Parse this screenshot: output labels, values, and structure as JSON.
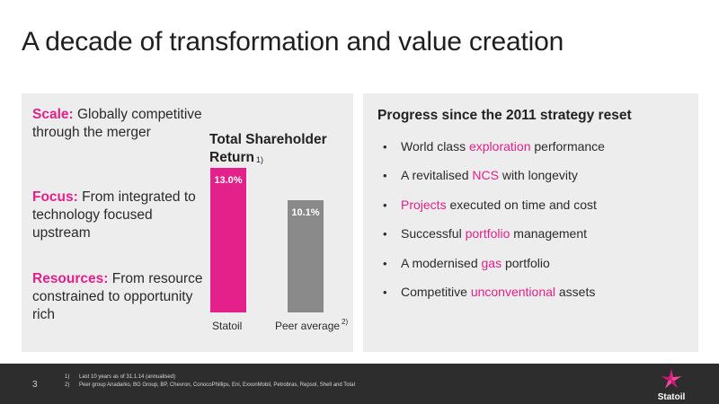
{
  "title": "A decade of transformation and value creation",
  "left_panel": {
    "pillars": [
      {
        "key": "Scale:",
        "text": " Globally competitive through the merger"
      },
      {
        "key": "Focus:",
        "text": " From integrated to technology focused upstream"
      },
      {
        "key": "Resources:",
        "text": " From resource constrained to opportunity rich"
      }
    ],
    "tsr_title": "Total Shareholder Return",
    "tsr_footnote": "1)"
  },
  "chart_data": {
    "type": "bar",
    "title": "Total Shareholder Return",
    "categories": [
      "Statoil",
      "Peer average"
    ],
    "values": [
      13.0,
      10.1
    ],
    "value_labels": [
      "13.0%",
      "10.1%"
    ],
    "category_footnotes": [
      "",
      "2)"
    ],
    "colors": [
      "#e4208a",
      "#8a8a8a"
    ],
    "unit": "%",
    "ylim": [
      0,
      15
    ]
  },
  "right_panel": {
    "title": "Progress since the 2011 strategy reset",
    "bullet_glyph": "•",
    "items": [
      {
        "pre": "World class ",
        "hl": "exploration",
        "post": " performance"
      },
      {
        "pre": "A revitalised ",
        "hl": "NCS",
        "post": " with longevity"
      },
      {
        "pre": "",
        "hl": "Projects",
        "post": " executed on time and cost"
      },
      {
        "pre": "Successful ",
        "hl": "portfolio",
        "post": " management"
      },
      {
        "pre": "A modernised ",
        "hl": "gas",
        "post": " portfolio"
      },
      {
        "pre": "Competitive ",
        "hl": "unconventional",
        "post": " assets"
      }
    ]
  },
  "footer": {
    "page": "3",
    "notes": [
      {
        "n": "1)",
        "text": "Last 10 years as of 31.1.14 (annualised)"
      },
      {
        "n": "2)",
        "text": "Peer group Anadarko, BG Group, BP, Chevron, ConocoPhillips, Eni, ExxonMobil, Petrobras, Repsol, Shell and Total"
      }
    ],
    "logo_text": "Statoil",
    "logo_icon": "statoil-star-icon"
  },
  "colors": {
    "accent": "#e4208a",
    "peer_bar": "#8a8a8a",
    "panel": "#ededed",
    "footer": "#2d2d2d"
  }
}
